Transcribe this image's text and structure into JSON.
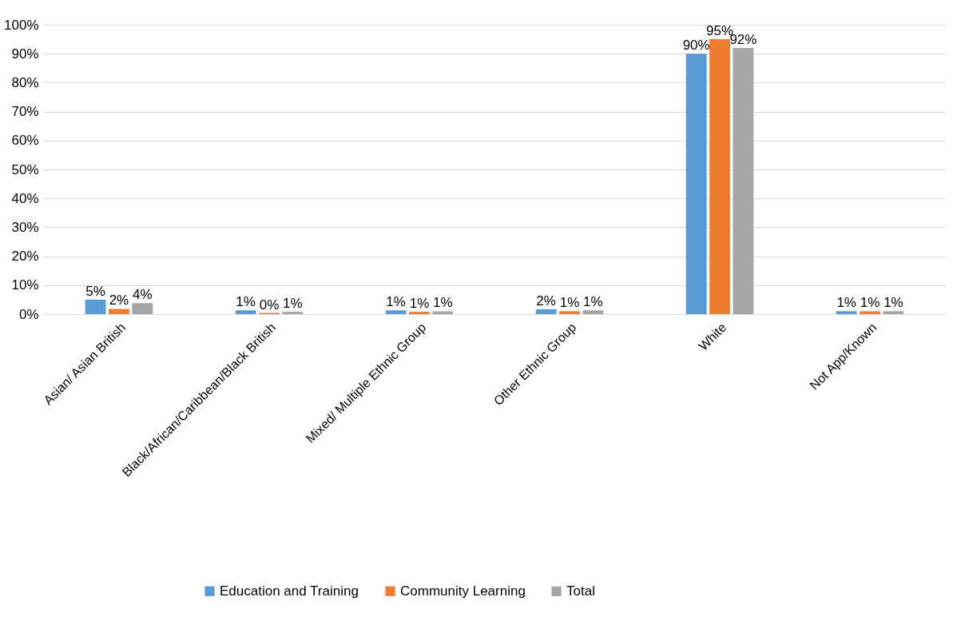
{
  "chart_data": {
    "type": "bar",
    "categories": [
      "Asian/ Asian British",
      "Black/African/Caribbean/Black British",
      "Mixed/ Multiple Ethnic Group",
      "Other Ethnic Group",
      "White",
      "Not App/Known"
    ],
    "series": [
      {
        "name": "Education and Training",
        "color": "#5b9bd5",
        "values": [
          5,
          1.3,
          1.3,
          1.7,
          90,
          1
        ],
        "value_labels": [
          "5%",
          "1%",
          "1%",
          "2%",
          "90%",
          "1%"
        ]
      },
      {
        "name": "Community Learning",
        "color": "#ed7d31",
        "values": [
          1.8,
          0.4,
          0.8,
          1,
          95,
          1
        ],
        "value_labels": [
          "2%",
          "0%",
          "1%",
          "1%",
          "95%",
          "1%"
        ]
      },
      {
        "name": "Total",
        "color": "#a5a5a5",
        "values": [
          3.8,
          0.8,
          1,
          1.3,
          92,
          1
        ],
        "value_labels": [
          "4%",
          "1%",
          "1%",
          "1%",
          "92%",
          "1%"
        ]
      }
    ],
    "ylim": [
      0,
      100
    ],
    "yticks": [
      {
        "value": 0,
        "label": "0%"
      },
      {
        "value": 10,
        "label": "10%"
      },
      {
        "value": 20,
        "label": "20%"
      },
      {
        "value": 30,
        "label": "30%"
      },
      {
        "value": 40,
        "label": "40%"
      },
      {
        "value": 50,
        "label": "50%"
      },
      {
        "value": 60,
        "label": "60%"
      },
      {
        "value": 70,
        "label": "70%"
      },
      {
        "value": 80,
        "label": "80%"
      },
      {
        "value": 90,
        "label": "90%"
      },
      {
        "value": 100,
        "label": "100%"
      }
    ],
    "grid": "y",
    "legend": "bottom"
  }
}
